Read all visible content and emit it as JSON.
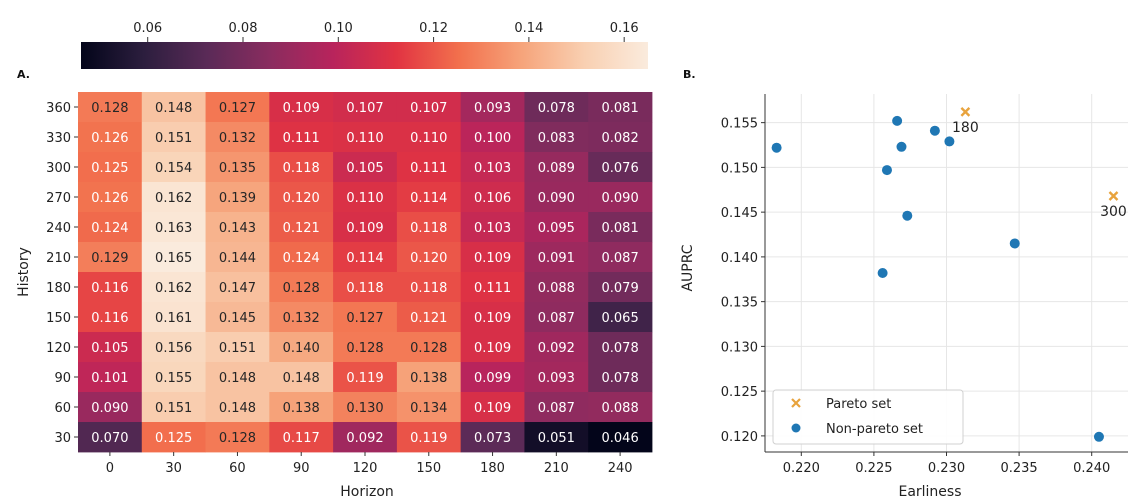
{
  "chart_data": [
    {
      "type": "heatmap",
      "panel_label": "A.",
      "title": "",
      "xlabel": "Horizon",
      "ylabel": "History",
      "x_categories": [
        "0",
        "30",
        "60",
        "90",
        "120",
        "150",
        "180",
        "210",
        "240"
      ],
      "y_categories": [
        "360",
        "330",
        "300",
        "270",
        "240",
        "210",
        "180",
        "150",
        "120",
        "90",
        "60",
        "30"
      ],
      "values": [
        [
          0.128,
          0.148,
          0.127,
          0.109,
          0.107,
          0.107,
          0.093,
          0.078,
          0.081
        ],
        [
          0.126,
          0.151,
          0.132,
          0.111,
          0.11,
          0.11,
          0.1,
          0.083,
          0.082
        ],
        [
          0.125,
          0.154,
          0.135,
          0.118,
          0.105,
          0.111,
          0.103,
          0.089,
          0.076
        ],
        [
          0.126,
          0.162,
          0.139,
          0.12,
          0.11,
          0.114,
          0.106,
          0.09,
          0.09
        ],
        [
          0.124,
          0.163,
          0.143,
          0.121,
          0.109,
          0.118,
          0.103,
          0.095,
          0.081
        ],
        [
          0.129,
          0.165,
          0.144,
          0.124,
          0.114,
          0.12,
          0.109,
          0.091,
          0.087
        ],
        [
          0.116,
          0.162,
          0.147,
          0.128,
          0.118,
          0.118,
          0.111,
          0.088,
          0.079
        ],
        [
          0.116,
          0.161,
          0.145,
          0.132,
          0.127,
          0.121,
          0.109,
          0.087,
          0.065
        ],
        [
          0.105,
          0.156,
          0.151,
          0.14,
          0.128,
          0.128,
          0.109,
          0.092,
          0.078
        ],
        [
          0.101,
          0.155,
          0.148,
          0.148,
          0.119,
          0.138,
          0.099,
          0.093,
          0.078
        ],
        [
          0.09,
          0.151,
          0.148,
          0.138,
          0.13,
          0.134,
          0.109,
          0.087,
          0.088
        ],
        [
          0.07,
          0.125,
          0.128,
          0.117,
          0.092,
          0.119,
          0.073,
          0.051,
          0.046
        ]
      ],
      "value_labels": [
        [
          "0.128",
          "0.148",
          "0.127",
          "0.109",
          "0.107",
          "0.107",
          "0.093",
          "0.078",
          "0.081"
        ],
        [
          "0.126",
          "0.151",
          "0.132",
          "0.111",
          "0.110",
          "0.110",
          "0.100",
          "0.083",
          "0.082"
        ],
        [
          "0.125",
          "0.154",
          "0.135",
          "0.118",
          "0.105",
          "0.111",
          "0.103",
          "0.089",
          "0.076"
        ],
        [
          "0.126",
          "0.162",
          "0.139",
          "0.120",
          "0.110",
          "0.114",
          "0.106",
          "0.090",
          "0.090"
        ],
        [
          "0.124",
          "0.163",
          "0.143",
          "0.121",
          "0.109",
          "0.118",
          "0.103",
          "0.095",
          "0.081"
        ],
        [
          "0.129",
          "0.165",
          "0.144",
          "0.124",
          "0.114",
          "0.120",
          "0.109",
          "0.091",
          "0.087"
        ],
        [
          "0.116",
          "0.162",
          "0.147",
          "0.128",
          "0.118",
          "0.118",
          "0.111",
          "0.088",
          "0.079"
        ],
        [
          "0.116",
          "0.161",
          "0.145",
          "0.132",
          "0.127",
          "0.121",
          "0.109",
          "0.087",
          "0.065"
        ],
        [
          "0.105",
          "0.156",
          "0.151",
          "0.140",
          "0.128",
          "0.128",
          "0.109",
          "0.092",
          "0.078"
        ],
        [
          "0.101",
          "0.155",
          "0.148",
          "0.148",
          "0.119",
          "0.138",
          "0.099",
          "0.093",
          "0.078"
        ],
        [
          "0.090",
          "0.151",
          "0.148",
          "0.138",
          "0.130",
          "0.134",
          "0.109",
          "0.087",
          "0.088"
        ],
        [
          "0.070",
          "0.125",
          "0.128",
          "0.117",
          "0.092",
          "0.119",
          "0.073",
          "0.051",
          "0.046"
        ]
      ],
      "colorbar": {
        "range": [
          0.046,
          0.165
        ],
        "ticks": [
          0.06,
          0.08,
          0.1,
          0.12,
          0.14,
          0.16
        ],
        "tick_labels": [
          "0.06",
          "0.08",
          "0.10",
          "0.12",
          "0.14",
          "0.16"
        ],
        "location": "top",
        "colormap": "rocket",
        "colormap_stops": [
          "#03051a",
          "#2c1e3e",
          "#5a2a57",
          "#8a2c5f",
          "#b8245c",
          "#e13342",
          "#f2704d",
          "#f6a47b",
          "#f9d0b2",
          "#faebdd"
        ]
      }
    },
    {
      "type": "scatter",
      "panel_label": "B.",
      "title": "",
      "xlabel": "Earliness",
      "ylabel": "AUPRC",
      "xlim": [
        0.2175,
        0.2425
      ],
      "ylim": [
        0.1182,
        0.1582
      ],
      "xticks": [
        "0.220",
        "0.225",
        "0.230",
        "0.235",
        "0.240"
      ],
      "yticks": [
        "0.120",
        "0.125",
        "0.130",
        "0.135",
        "0.140",
        "0.145",
        "0.150",
        "0.155"
      ],
      "grid": true,
      "legend_position": "lower-left",
      "series": [
        {
          "name": "Pareto set",
          "marker": "x",
          "color": "#e8a33d",
          "points": [
            {
              "x": 0.2313,
              "y": 0.1562,
              "label": "180"
            },
            {
              "x": 0.2415,
              "y": 0.1468,
              "label": "300"
            }
          ]
        },
        {
          "name": "Non-pareto set",
          "marker": "circle",
          "color": "#1f77b4",
          "points": [
            {
              "x": 0.2183,
              "y": 0.1522
            },
            {
              "x": 0.2266,
              "y": 0.1552
            },
            {
              "x": 0.2269,
              "y": 0.1523
            },
            {
              "x": 0.2259,
              "y": 0.1497
            },
            {
              "x": 0.2292,
              "y": 0.1541
            },
            {
              "x": 0.2302,
              "y": 0.1529
            },
            {
              "x": 0.2273,
              "y": 0.1446
            },
            {
              "x": 0.2256,
              "y": 0.1382
            },
            {
              "x": 0.2347,
              "y": 0.1415
            },
            {
              "x": 0.2405,
              "y": 0.1199
            }
          ]
        }
      ]
    }
  ]
}
